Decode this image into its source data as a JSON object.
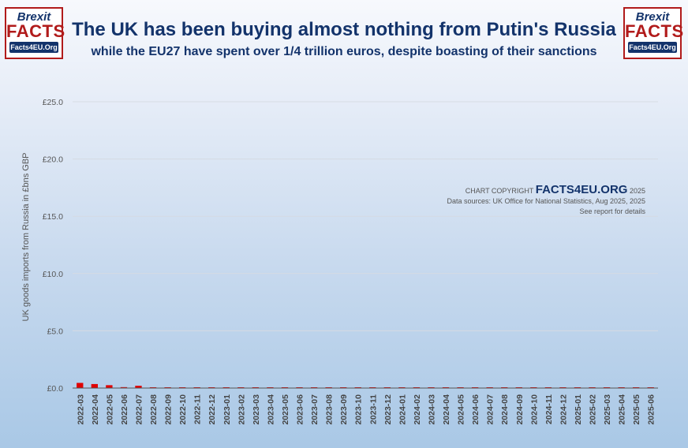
{
  "logo": {
    "line1": "Brexit",
    "line2": "FACTS",
    "line3": "Facts4EU.Org"
  },
  "header": {
    "title": "The UK has been buying almost nothing from Putin's Russia",
    "subtitle": "while the EU27 have spent over 1/4 trillion euros, despite boasting of their sanctions"
  },
  "copyright": {
    "prefix": "CHART COPYRIGHT",
    "brand": "FACTS4EU.ORG",
    "year": "2025",
    "sources": "Data sources: UK Office for National Statistics, Aug 2025, 2025",
    "note": "See report for details"
  },
  "chart_data": {
    "type": "bar",
    "ylabel": "UK goods imports from Russia in £bns GBP",
    "xlabel": "",
    "ylim": [
      0,
      25
    ],
    "yticks": [
      0,
      5,
      10,
      15,
      20,
      25
    ],
    "ytick_labels": [
      "£0.0",
      "£5.0",
      "£10.0",
      "£15.0",
      "£20.0",
      "£25.0"
    ],
    "grid": true,
    "bar_color": "#e00000",
    "categories": [
      "2022-03",
      "2022-04",
      "2022-05",
      "2022-06",
      "2022-07",
      "2022-08",
      "2022-09",
      "2022-10",
      "2022-11",
      "2022-12",
      "2023-01",
      "2023-02",
      "2023-03",
      "2023-04",
      "2023-05",
      "2023-06",
      "2023-07",
      "2023-08",
      "2023-09",
      "2023-10",
      "2023-11",
      "2023-12",
      "2024-01",
      "2024-02",
      "2024-03",
      "2024-04",
      "2024-05",
      "2024-06",
      "2024-07",
      "2024-08",
      "2024-09",
      "2024-10",
      "2024-11",
      "2024-12",
      "2025-01",
      "2025-02",
      "2025-03",
      "2025-04",
      "2025-05",
      "2025-06"
    ],
    "values": [
      0.45,
      0.35,
      0.25,
      0.08,
      0.2,
      0.07,
      0.06,
      0.05,
      0.05,
      0.05,
      0.05,
      0.05,
      0.05,
      0.05,
      0.05,
      0.05,
      0.05,
      0.05,
      0.05,
      0.05,
      0.05,
      0.05,
      0.05,
      0.05,
      0.05,
      0.05,
      0.05,
      0.05,
      0.05,
      0.05,
      0.05,
      0.05,
      0.05,
      0.05,
      0.05,
      0.05,
      0.05,
      0.05,
      0.05,
      0.05
    ]
  }
}
